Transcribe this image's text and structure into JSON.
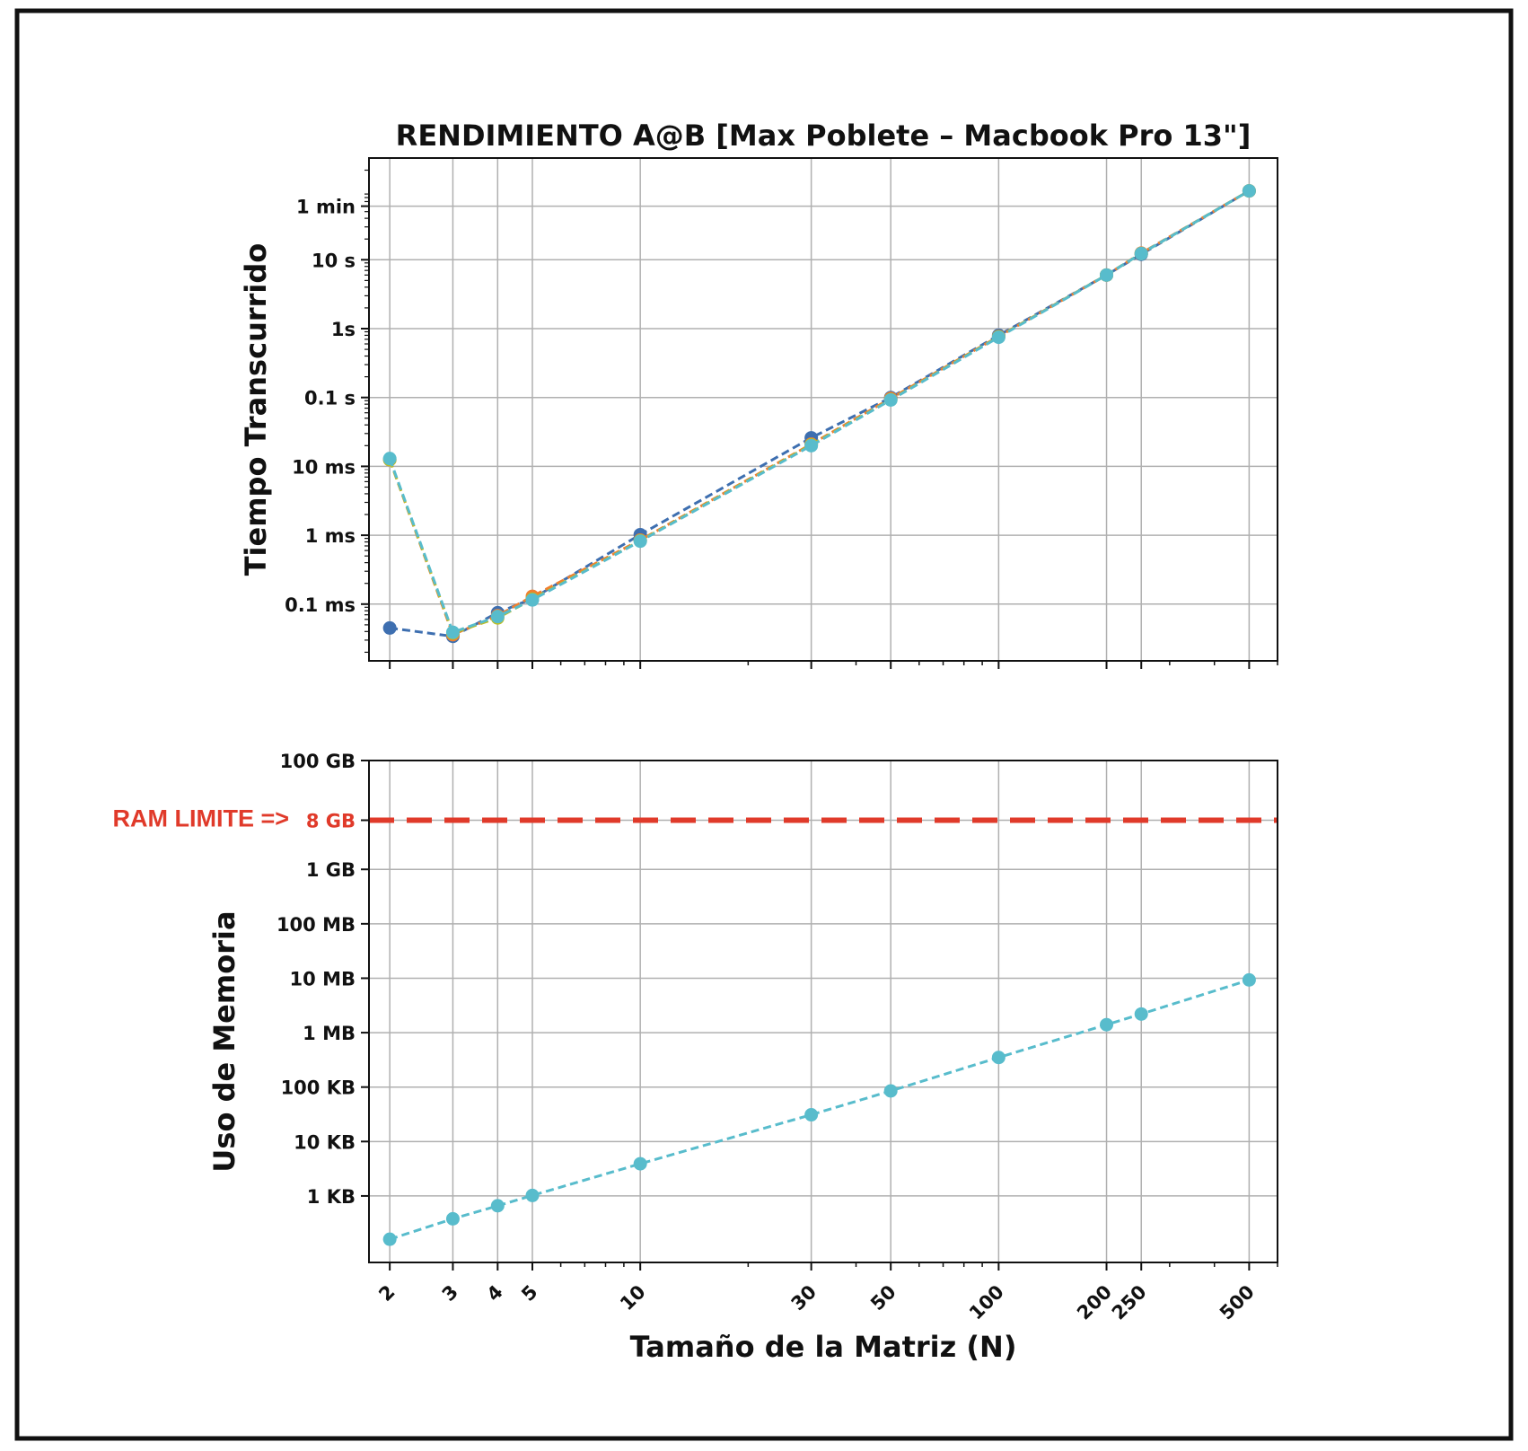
{
  "colors": {
    "grid": "#b0b0b0",
    "axis": "#111111",
    "ram_limit": "#e03a2a",
    "series": [
      "#3e6fb0",
      "#f07f2f",
      "#4caf50",
      "#d94a4a",
      "#a07ad6",
      "#9c6b5e",
      "#e87dc6",
      "#8c8c8c",
      "#bcbd22",
      "#58bccc"
    ]
  },
  "chart_data": [
    {
      "type": "line",
      "title": "RENDIMIENTO A@B [Max Poblete – Macbook Pro 13\"]",
      "ylabel": "Tiempo Transcurrido",
      "xlabel": "",
      "x_scale": "log",
      "y_scale": "log",
      "xlim": [
        1.75,
        600
      ],
      "ylim_seconds": [
        1.5e-05,
        300
      ],
      "x_ticks": [
        2,
        3,
        4,
        5,
        10,
        30,
        50,
        100,
        200,
        250,
        500
      ],
      "y_ticks": [
        {
          "value": 0.0001,
          "label": "0.1 ms"
        },
        {
          "value": 0.001,
          "label": "1 ms"
        },
        {
          "value": 0.01,
          "label": "10 ms"
        },
        {
          "value": 0.1,
          "label": "0.1 s"
        },
        {
          "value": 1,
          "label": "1s"
        },
        {
          "value": 10,
          "label": "10 s"
        },
        {
          "value": 60,
          "label": "1 min"
        }
      ],
      "grid": true,
      "line_style": "dashed",
      "marker": "circle",
      "series": [
        {
          "color_index": 0,
          "x": [
            2,
            3,
            4,
            5,
            10,
            30,
            50,
            100,
            200,
            250,
            500
          ],
          "y": [
            4.5e-05,
            3.4e-05,
            7.5e-05,
            0.00012,
            0.00102,
            0.026,
            0.1,
            0.8,
            6.0,
            12.0,
            100
          ]
        },
        {
          "color_index": 1,
          "x": [
            2,
            3,
            4,
            5,
            10,
            30,
            50,
            100,
            200,
            250,
            500
          ],
          "y": [
            0.0125,
            3.6e-05,
            6.8e-05,
            0.00013,
            0.00085,
            0.021,
            0.097,
            0.77,
            6.0,
            12.5,
            100
          ]
        },
        {
          "color_index": 8,
          "x": [
            2,
            3,
            4,
            5,
            10,
            30,
            50,
            100,
            200,
            250,
            500
          ],
          "y": [
            0.0125,
            3.8e-05,
            6.3e-05,
            0.000118,
            0.00083,
            0.0205,
            0.093,
            0.76,
            6.0,
            12.3,
            100
          ]
        },
        {
          "color_index": 9,
          "x": [
            2,
            3,
            4,
            5,
            10,
            30,
            50,
            100,
            200,
            250,
            500
          ],
          "y": [
            0.013,
            3.9e-05,
            6.6e-05,
            0.000115,
            0.00082,
            0.02,
            0.092,
            0.75,
            6.0,
            12.3,
            100
          ]
        }
      ]
    },
    {
      "type": "line",
      "title": "",
      "ylabel": "Uso de Memoria",
      "xlabel": "Tamaño de la Matriz (N)",
      "x_scale": "log",
      "y_scale": "log",
      "xlim": [
        1.75,
        600
      ],
      "ylim_bytes": [
        60,
        100000000000
      ],
      "x_ticks": [
        2,
        3,
        4,
        5,
        10,
        30,
        50,
        100,
        200,
        250,
        500
      ],
      "y_ticks": [
        {
          "value": 1000,
          "label": "1 KB"
        },
        {
          "value": 10000,
          "label": "10 KB"
        },
        {
          "value": 100000,
          "label": "100 KB"
        },
        {
          "value": 1000000,
          "label": "1 MB"
        },
        {
          "value": 10000000,
          "label": "10 MB"
        },
        {
          "value": 100000000,
          "label": "100 MB"
        },
        {
          "value": 1000000000,
          "label": "1 GB"
        },
        {
          "value": 8000000000,
          "label": "8 GB"
        },
        {
          "value": 100000000000,
          "label": "100 GB"
        }
      ],
      "grid": true,
      "line_style": "dashed",
      "marker": "circle",
      "series": [
        {
          "color_index": 9,
          "x": [
            2,
            3,
            4,
            5,
            10,
            30,
            50,
            100,
            200,
            250,
            500
          ],
          "y": [
            160,
            380,
            660,
            1020,
            3900,
            31000,
            85000,
            350000,
            1400000,
            2200000,
            9300000
          ]
        }
      ],
      "reference_line": {
        "value": 8000000000,
        "label": "RAM LIMITE =>",
        "style": "dashed"
      }
    }
  ]
}
